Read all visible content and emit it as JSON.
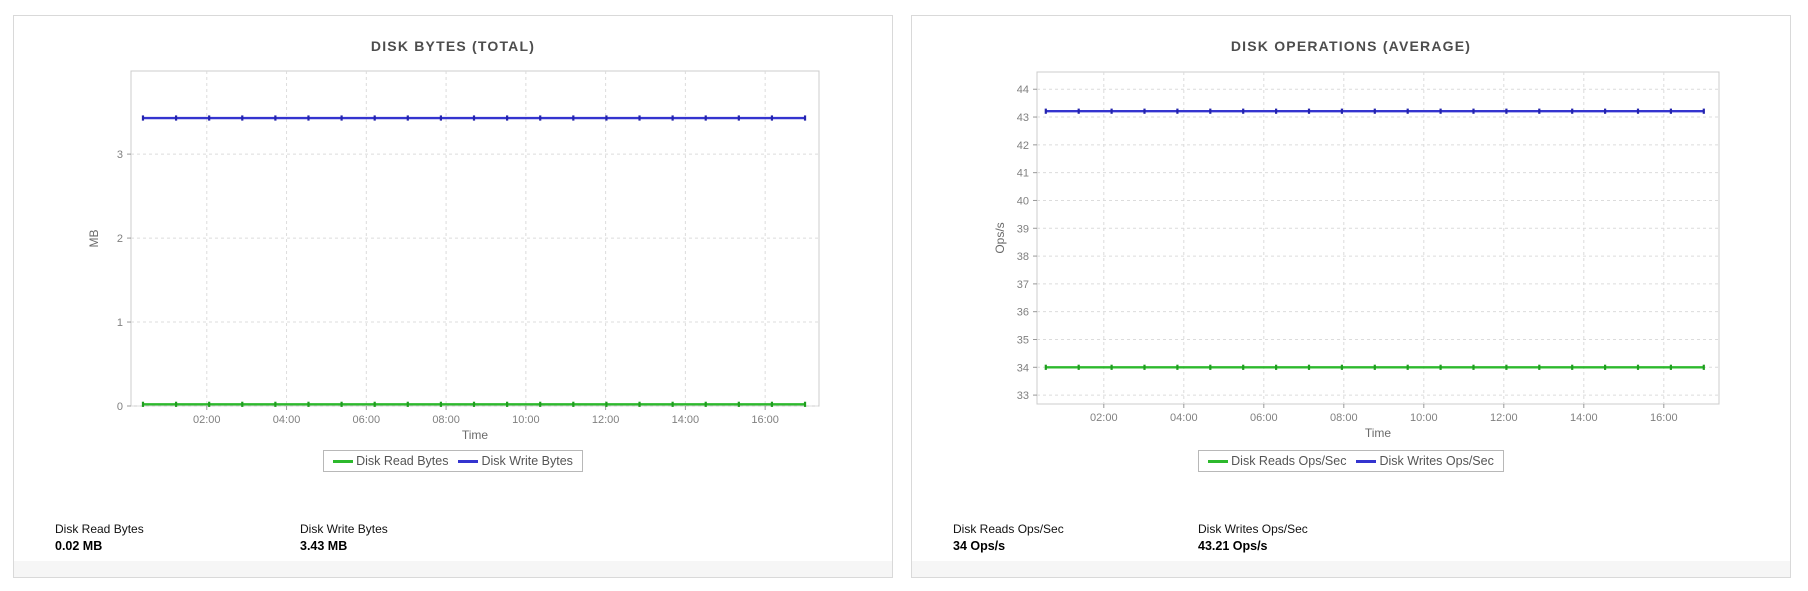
{
  "colors": {
    "read_green": "#2db92d",
    "read_green_marker": "#1f9e1f",
    "write_blue": "#3434cf",
    "write_blue_marker": "#2424ad",
    "grid": "#dcdcdc",
    "plot_border": "#cccccc",
    "tick": "#999999"
  },
  "panels": [
    {
      "stats": [
        {
          "label": "Disk Read Bytes",
          "value": "0.02 MB"
        },
        {
          "label": "Disk Write Bytes",
          "value": "3.43 MB"
        }
      ]
    },
    {
      "stats": [
        {
          "label": "Disk Reads Ops/Sec",
          "value": "34 Ops/s"
        },
        {
          "label": "Disk Writes Ops/Sec",
          "value": "43.21 Ops/s"
        }
      ]
    }
  ],
  "chart_data": [
    {
      "type": "line",
      "title": "DISK BYTES (TOTAL)",
      "xlabel": "Time",
      "ylabel": "MB",
      "grid": true,
      "legend_position": "bottom",
      "x_unit": "hours",
      "xlim": [
        0.1,
        17.35
      ],
      "ylim": [
        0,
        3.99
      ],
      "y_ticks": [
        "0",
        "1",
        "2",
        "3"
      ],
      "y_tick_values": [
        0,
        1,
        2,
        3
      ],
      "x_ticks": [
        {
          "value": 2,
          "label": "02:00"
        },
        {
          "value": 4,
          "label": "04:00"
        },
        {
          "value": 6,
          "label": "06:00"
        },
        {
          "value": 8,
          "label": "08:00"
        },
        {
          "value": 10,
          "label": "10:00"
        },
        {
          "value": 12,
          "label": "12:00"
        },
        {
          "value": 14,
          "label": "14:00"
        },
        {
          "value": 16,
          "label": "16:00"
        }
      ],
      "series": [
        {
          "name": "Disk Read Bytes",
          "color": "#2db92d",
          "marker_color": "#1f9e1f",
          "constant_value": 0.02,
          "x_start": 0.4,
          "x_end": 17.0,
          "num_points": 21
        },
        {
          "name": "Disk Write Bytes",
          "color": "#3434cf",
          "marker_color": "#2424ad",
          "constant_value": 3.43,
          "x_start": 0.4,
          "x_end": 17.0,
          "num_points": 21
        }
      ]
    },
    {
      "type": "line",
      "title": "DISK OPERATIONS (AVERAGE)",
      "xlabel": "Time",
      "ylabel": "Ops/s",
      "grid": true,
      "legend_position": "bottom",
      "x_unit": "hours",
      "xlim": [
        0.33,
        17.38
      ],
      "ylim": [
        32.68,
        44.62
      ],
      "y_ticks": [
        "33",
        "34",
        "35",
        "36",
        "37",
        "38",
        "39",
        "40",
        "41",
        "42",
        "43",
        "44"
      ],
      "y_tick_values": [
        33,
        34,
        35,
        36,
        37,
        38,
        39,
        40,
        41,
        42,
        43,
        44
      ],
      "x_ticks": [
        {
          "value": 2,
          "label": "02:00"
        },
        {
          "value": 4,
          "label": "04:00"
        },
        {
          "value": 6,
          "label": "06:00"
        },
        {
          "value": 8,
          "label": "08:00"
        },
        {
          "value": 10,
          "label": "10:00"
        },
        {
          "value": 12,
          "label": "12:00"
        },
        {
          "value": 14,
          "label": "14:00"
        },
        {
          "value": 16,
          "label": "16:00"
        }
      ],
      "series": [
        {
          "name": "Disk Reads Ops/Sec",
          "color": "#2db92d",
          "marker_color": "#1f9e1f",
          "constant_value": 34,
          "x_start": 0.55,
          "x_end": 17.0,
          "num_points": 21
        },
        {
          "name": "Disk Writes Ops/Sec",
          "color": "#3434cf",
          "marker_color": "#2424ad",
          "constant_value": 43.21,
          "x_start": 0.55,
          "x_end": 17.0,
          "num_points": 21
        }
      ]
    }
  ]
}
